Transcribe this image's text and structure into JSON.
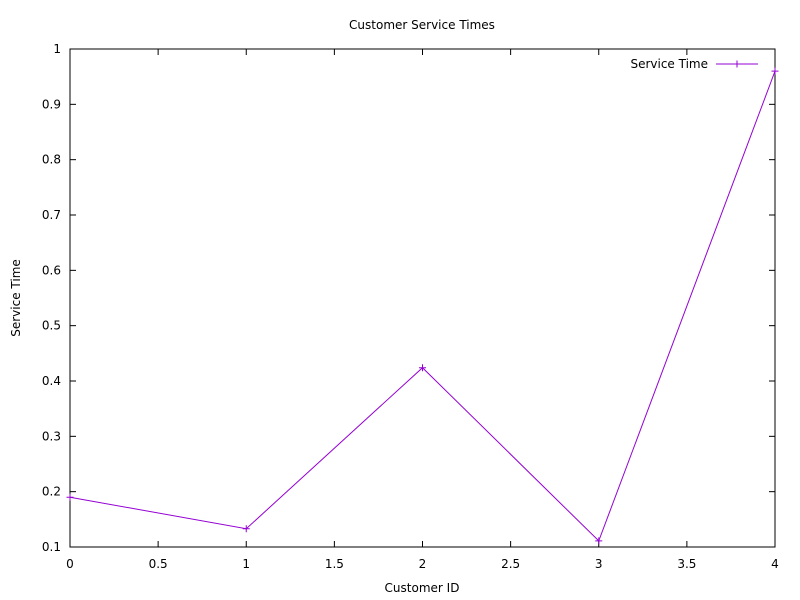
{
  "chart_data": {
    "type": "line",
    "title": "Customer Service Times",
    "xlabel": "Customer ID",
    "ylabel": "Service Time",
    "xlim": [
      0,
      4
    ],
    "ylim": [
      0.1,
      1
    ],
    "xticks": [
      0,
      0.5,
      1,
      1.5,
      2,
      2.5,
      3,
      3.5,
      4
    ],
    "xtick_labels": [
      "0",
      "0.5",
      "1",
      "1.5",
      "2",
      "2.5",
      "3",
      "3.5",
      "4"
    ],
    "yticks": [
      0.1,
      0.2,
      0.3,
      0.4,
      0.5,
      0.6,
      0.7,
      0.8,
      0.9,
      1
    ],
    "ytick_labels": [
      "0.1",
      "0.2",
      "0.3",
      "0.4",
      "0.5",
      "0.6",
      "0.7",
      "0.8",
      "0.9",
      "1"
    ],
    "grid": false,
    "legend_position": "top-right",
    "series": [
      {
        "name": "Service Time",
        "color": "#9400d3",
        "marker": "plus",
        "x": [
          0,
          1,
          2,
          3,
          4
        ],
        "y": [
          0.19,
          0.133,
          0.424,
          0.111,
          0.96
        ]
      }
    ]
  }
}
